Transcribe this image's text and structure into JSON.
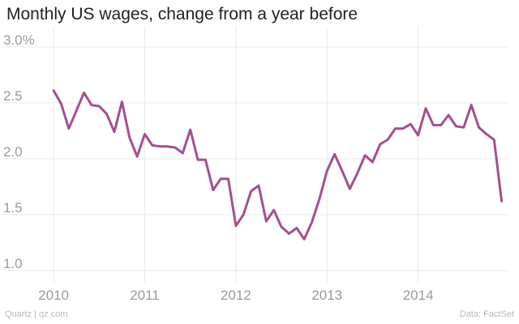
{
  "chart_data": {
    "type": "line",
    "title": "Monthly US wages, change from a year before",
    "xlabel": "",
    "ylabel": "",
    "x_ticks": [
      "2010",
      "2011",
      "2012",
      "2013",
      "2014"
    ],
    "x_tick_values": [
      2010,
      2011,
      2012,
      2013,
      2014
    ],
    "y_ticks": [
      "1.0",
      "1.5",
      "2.0",
      "2.5",
      "3.0%"
    ],
    "y_tick_values": [
      1.0,
      1.5,
      2.0,
      2.5,
      3.0
    ],
    "xlim": [
      2009.75,
      2015.0
    ],
    "ylim": [
      0.92,
      3.13
    ],
    "grid": true,
    "series": [
      {
        "name": "Monthly US wages, change from a year before",
        "color": "#a54f8d",
        "x": [
          2010.0,
          2010.0833,
          2010.1667,
          2010.25,
          2010.3333,
          2010.4167,
          2010.5,
          2010.5833,
          2010.6667,
          2010.75,
          2010.8333,
          2010.9167,
          2011.0,
          2011.0833,
          2011.1667,
          2011.25,
          2011.3333,
          2011.4167,
          2011.5,
          2011.5833,
          2011.6667,
          2011.75,
          2011.8333,
          2011.9167,
          2012.0,
          2012.0833,
          2012.1667,
          2012.25,
          2012.3333,
          2012.4167,
          2012.5,
          2012.5833,
          2012.6667,
          2012.75,
          2012.8333,
          2012.9167,
          2013.0,
          2013.0833,
          2013.1667,
          2013.25,
          2013.3333,
          2013.4167,
          2013.5,
          2013.5833,
          2013.6667,
          2013.75,
          2013.8333,
          2013.9167,
          2014.0,
          2014.0833,
          2014.1667,
          2014.25,
          2014.3333,
          2014.4167,
          2014.5,
          2014.5833,
          2014.6667,
          2014.75,
          2014.8333,
          2014.9167
        ],
        "values": [
          2.61,
          2.49,
          2.27,
          2.43,
          2.59,
          2.48,
          2.47,
          2.4,
          2.24,
          2.51,
          2.19,
          2.02,
          2.22,
          2.12,
          2.11,
          2.11,
          2.1,
          2.05,
          2.26,
          1.99,
          1.99,
          1.72,
          1.82,
          1.82,
          1.4,
          1.5,
          1.71,
          1.76,
          1.44,
          1.54,
          1.39,
          1.33,
          1.38,
          1.28,
          1.43,
          1.64,
          1.89,
          2.04,
          1.89,
          1.73,
          1.87,
          2.03,
          1.97,
          2.13,
          2.17,
          2.27,
          2.27,
          2.31,
          2.21,
          2.45,
          2.3,
          2.3,
          2.39,
          2.29,
          2.28,
          2.48,
          2.28,
          2.22,
          2.17,
          1.62
        ]
      }
    ]
  },
  "footer": {
    "source_left": "Quartz | qz.com",
    "source_right": "Data: FactSet"
  }
}
